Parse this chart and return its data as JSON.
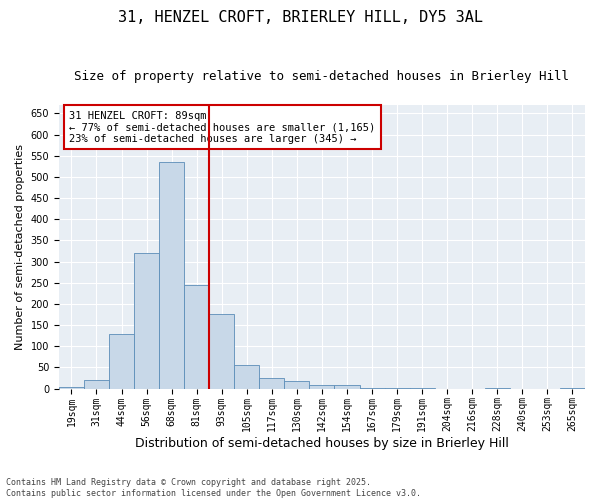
{
  "title": "31, HENZEL CROFT, BRIERLEY HILL, DY5 3AL",
  "subtitle": "Size of property relative to semi-detached houses in Brierley Hill",
  "xlabel": "Distribution of semi-detached houses by size in Brierley Hill",
  "ylabel": "Number of semi-detached properties",
  "bins": [
    "19sqm",
    "31sqm",
    "44sqm",
    "56sqm",
    "68sqm",
    "81sqm",
    "93sqm",
    "105sqm",
    "117sqm",
    "130sqm",
    "142sqm",
    "154sqm",
    "167sqm",
    "179sqm",
    "191sqm",
    "204sqm",
    "216sqm",
    "228sqm",
    "240sqm",
    "253sqm",
    "265sqm"
  ],
  "values": [
    3,
    20,
    130,
    320,
    535,
    245,
    175,
    55,
    25,
    18,
    9,
    8,
    1,
    1,
    1,
    0,
    0,
    1,
    0,
    0,
    1
  ],
  "bar_color": "#c8d8e8",
  "bar_edge_color": "#5b8db8",
  "property_size": 89,
  "vline_color": "#cc0000",
  "annotation_line1": "31 HENZEL CROFT: 89sqm",
  "annotation_line2": "← 77% of semi-detached houses are smaller (1,165)",
  "annotation_line3": "23% of semi-detached houses are larger (345) →",
  "annotation_box_color": "#ffffff",
  "annotation_box_edge_color": "#cc0000",
  "ylim": [
    0,
    670
  ],
  "yticks": [
    0,
    50,
    100,
    150,
    200,
    250,
    300,
    350,
    400,
    450,
    500,
    550,
    600,
    650
  ],
  "background_color": "#e8eef4",
  "footnote": "Contains HM Land Registry data © Crown copyright and database right 2025.\nContains public sector information licensed under the Open Government Licence v3.0.",
  "title_fontsize": 11,
  "subtitle_fontsize": 9,
  "xlabel_fontsize": 9,
  "ylabel_fontsize": 8,
  "tick_fontsize": 7,
  "annot_fontsize": 7.5
}
